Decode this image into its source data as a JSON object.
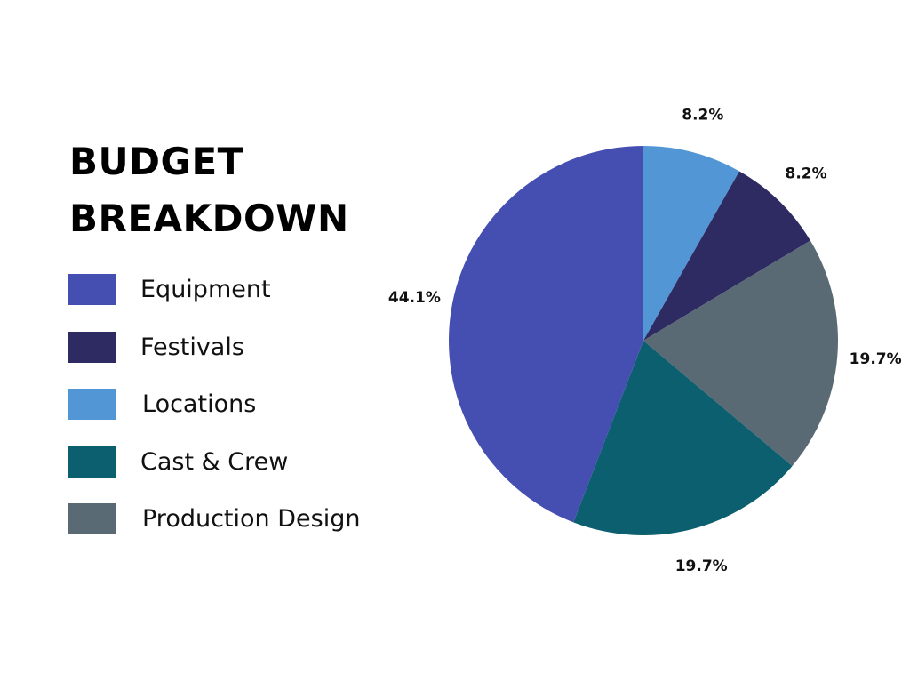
{
  "chart_data": {
    "type": "pie",
    "title": [
      "BUDGET",
      "BREAKDOWN"
    ],
    "slices": [
      {
        "label": "Locations",
        "value": 8.2,
        "display": "8.2%",
        "color": "#5296d6"
      },
      {
        "label": "Festivals",
        "value": 8.2,
        "display": "8.2%",
        "color": "#2e2a62"
      },
      {
        "label": "Production Design",
        "value": 19.7,
        "display": "19.7%",
        "color": "#5a6a74"
      },
      {
        "label": "Cast & Crew",
        "value": 19.7,
        "display": "19.7%",
        "color": "#0b5f6e"
      },
      {
        "label": "Equipment",
        "value": 44.1,
        "display": "44.1%",
        "color": "#454eb1"
      }
    ],
    "legend": [
      {
        "label": "Equipment",
        "color": "#454eb1"
      },
      {
        "label": "Festivals",
        "color": "#2e2a62"
      },
      {
        "label": "Locations",
        "color": "#5296d6"
      },
      {
        "label": "Cast & Crew",
        "color": "#0b5f6e"
      },
      {
        "label": "Production Design",
        "color": "#5a6a74"
      }
    ],
    "legend_position": "left",
    "start": "top",
    "direction": "clockwise"
  }
}
